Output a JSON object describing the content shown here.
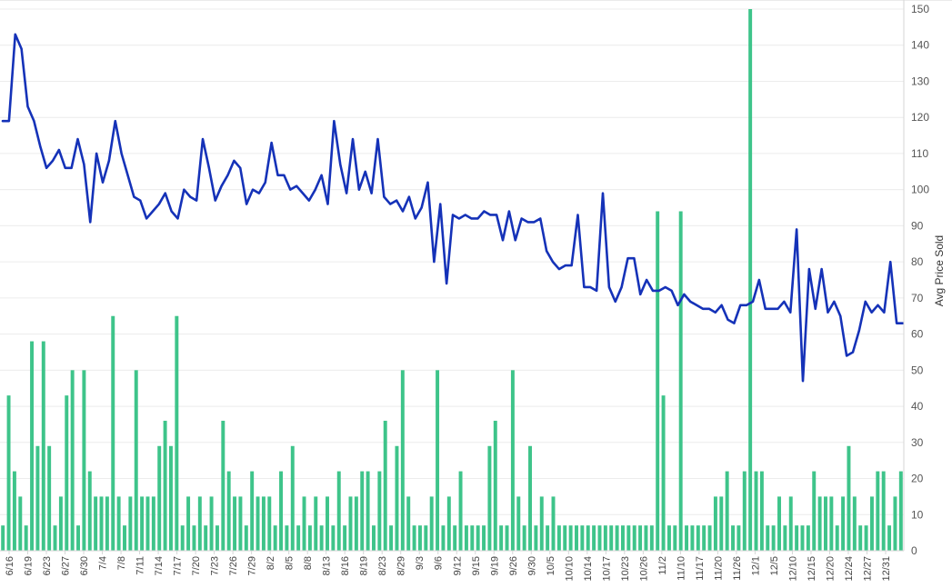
{
  "chart_data": {
    "type": "bar+line",
    "title": "",
    "xlabel": "",
    "ylabel": "Avg Price Sold",
    "ylim": [
      0,
      150
    ],
    "y_ticks": [
      0,
      10,
      20,
      30,
      40,
      50,
      60,
      70,
      80,
      90,
      100,
      110,
      120,
      130,
      140,
      150
    ],
    "grid": true,
    "x_tick_labels": [
      "6/16",
      "6/19",
      "6/23",
      "6/27",
      "6/30",
      "7/4",
      "7/8",
      "7/11",
      "7/14",
      "7/17",
      "7/20",
      "7/23",
      "7/26",
      "7/29",
      "8/2",
      "8/5",
      "8/8",
      "8/13",
      "8/16",
      "8/19",
      "8/23",
      "8/29",
      "9/3",
      "9/6",
      "9/12",
      "9/15",
      "9/19",
      "9/26",
      "9/30",
      "10/5",
      "10/10",
      "10/14",
      "10/17",
      "10/23",
      "10/26",
      "11/2",
      "11/10",
      "11/17",
      "11/20",
      "11/26",
      "12/1",
      "12/5",
      "12/10",
      "12/15",
      "12/20",
      "12/24",
      "12/27",
      "12/31"
    ],
    "series": [
      {
        "type": "bar",
        "color": "#3ec48a",
        "values": [
          7,
          43,
          22,
          15,
          7,
          58,
          29,
          58,
          29,
          7,
          15,
          43,
          50,
          7,
          50,
          22,
          15,
          15,
          15,
          65,
          15,
          7,
          15,
          50,
          15,
          15,
          15,
          29,
          36,
          29,
          65,
          7,
          15,
          7,
          15,
          7,
          15,
          7,
          36,
          22,
          15,
          15,
          7,
          22,
          15,
          15,
          15,
          7,
          22,
          7,
          29,
          7,
          15,
          7,
          15,
          7,
          15,
          7,
          22,
          7,
          15,
          15,
          22,
          22,
          7,
          22,
          36,
          7,
          29,
          50,
          15,
          7,
          7,
          7,
          15,
          50,
          7,
          15,
          7,
          22,
          7,
          7,
          7,
          7,
          29,
          36,
          7,
          7,
          50,
          15,
          7,
          29,
          7,
          15,
          7,
          15,
          7,
          7,
          7,
          7,
          7,
          7,
          7,
          7,
          7,
          7,
          7,
          7,
          7,
          7,
          7,
          7,
          7,
          94,
          43,
          7,
          7,
          94,
          7,
          7,
          7,
          7,
          7,
          15,
          15,
          22,
          7,
          7,
          22,
          150,
          22,
          22,
          7,
          7,
          15,
          7,
          15,
          7,
          7,
          7,
          22,
          15,
          15,
          15,
          7,
          15,
          29,
          15,
          7,
          7,
          15,
          22,
          22,
          7,
          15,
          22
        ]
      },
      {
        "type": "line",
        "color": "#1532b8",
        "values": [
          119,
          119,
          143,
          139,
          123,
          119,
          112,
          106,
          108,
          111,
          106,
          106,
          114,
          107,
          91,
          110,
          102,
          108,
          119,
          110,
          104,
          98,
          97,
          92,
          94,
          96,
          99,
          94,
          92,
          100,
          98,
          97,
          114,
          106,
          97,
          101,
          104,
          108,
          106,
          96,
          100,
          99,
          102,
          113,
          104,
          104,
          100,
          101,
          99,
          97,
          100,
          104,
          96,
          119,
          107,
          99,
          114,
          100,
          105,
          99,
          114,
          98,
          96,
          97,
          94,
          98,
          92,
          95,
          102,
          80,
          96,
          74,
          93,
          92,
          93,
          92,
          92,
          94,
          93,
          93,
          86,
          94,
          86,
          92,
          91,
          91,
          92,
          83,
          80,
          78,
          79,
          79,
          93,
          73,
          73,
          72,
          99,
          73,
          69,
          73,
          81,
          81,
          71,
          75,
          72,
          72,
          73,
          72,
          68,
          71,
          69,
          68,
          67,
          67,
          66,
          68,
          64,
          63,
          68,
          68,
          69,
          75,
          67,
          67,
          67,
          69,
          66,
          89,
          47,
          78,
          67,
          78,
          66,
          69,
          65,
          54,
          55,
          61,
          69,
          66,
          68,
          66,
          80,
          63,
          63
        ]
      }
    ]
  }
}
